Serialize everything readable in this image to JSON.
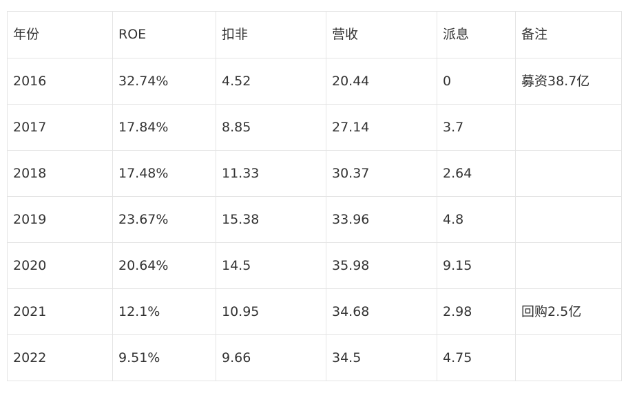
{
  "table": {
    "headers": [
      "年份",
      "ROE",
      "扣非",
      "营收",
      "派息",
      "备注"
    ],
    "rows": [
      [
        "2016",
        "32.74%",
        "4.52",
        "20.44",
        "0",
        "募资38.7亿"
      ],
      [
        "2017",
        "17.84%",
        "8.85",
        "27.14",
        "3.7",
        ""
      ],
      [
        "2018",
        "17.48%",
        "11.33",
        "30.37",
        "2.64",
        ""
      ],
      [
        "2019",
        "23.67%",
        "15.38",
        "33.96",
        "4.8",
        ""
      ],
      [
        "2020",
        "20.64%",
        "14.5",
        "35.98",
        "9.15",
        ""
      ],
      [
        "2021",
        "12.1%",
        "10.95",
        "34.68",
        "2.98",
        "回购2.5亿"
      ],
      [
        "2022",
        "9.51%",
        "9.66",
        "34.5",
        "4.75",
        ""
      ]
    ]
  }
}
